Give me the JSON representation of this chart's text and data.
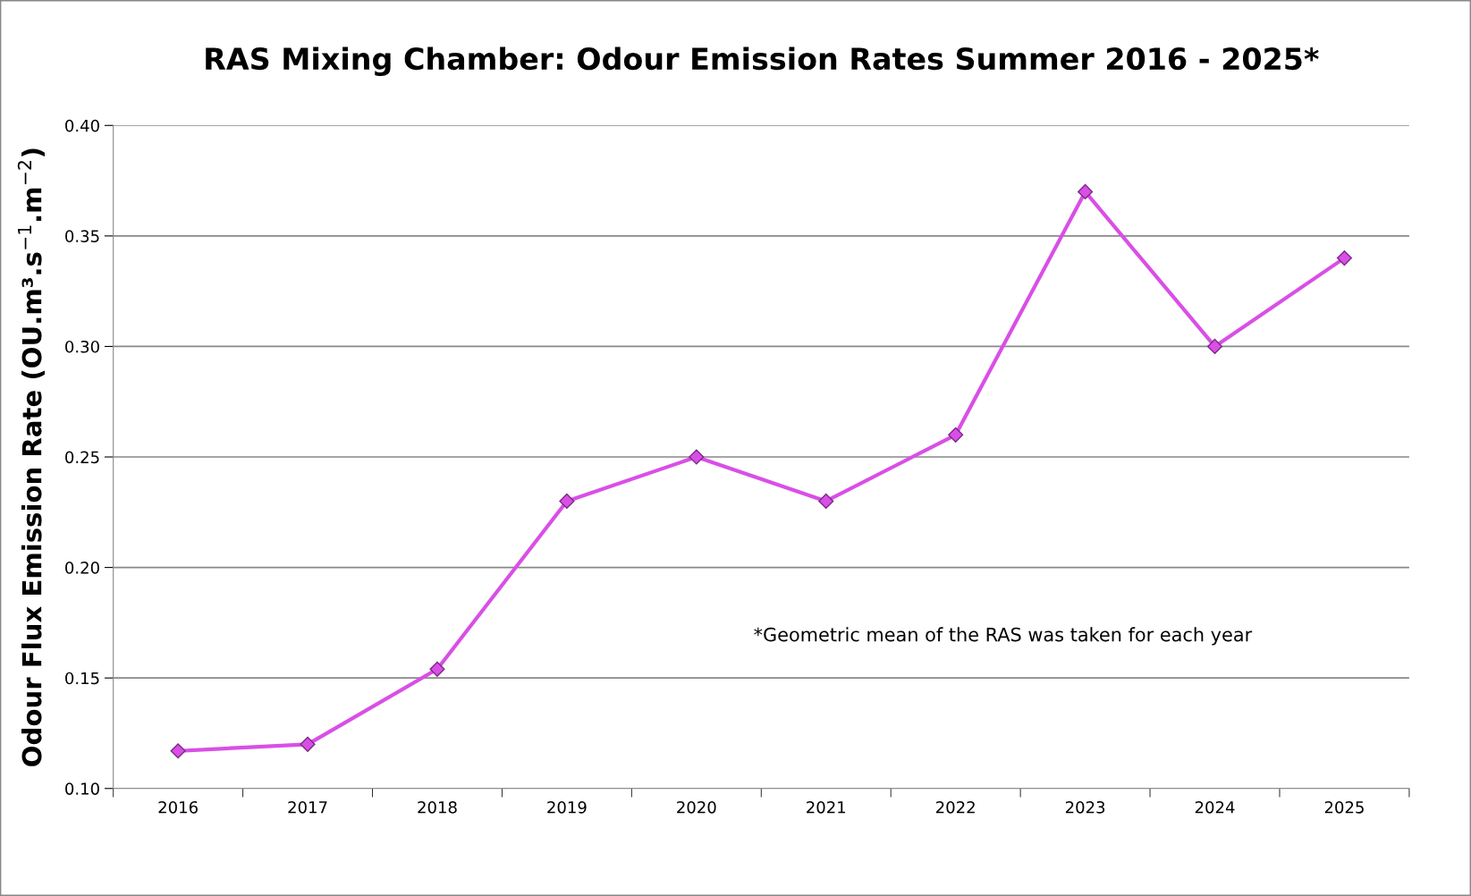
{
  "chart_data": {
    "type": "line",
    "title": "RAS Mixing Chamber: Odour Emission Rates Summer 2016 - 2025*",
    "ylabel": "Odour Flux Emission Rate (OU.m³.s$^{−1}$.m$^{−2}$)",
    "categories": [
      "2016",
      "2017",
      "2018",
      "2019",
      "2020",
      "2021",
      "2022",
      "2023",
      "2024",
      "2025"
    ],
    "series": [
      {
        "color": "#d94fe6",
        "values": [
          0.117,
          0.12,
          0.154,
          0.23,
          0.25,
          0.23,
          0.26,
          0.37,
          0.3,
          0.34
        ]
      }
    ],
    "ylim": [
      0.1,
      0.4
    ],
    "yticks": [
      {
        "value": 0.1,
        "label": "0.10"
      },
      {
        "value": 0.15,
        "label": "0.15"
      },
      {
        "value": 0.2,
        "label": "0.20"
      },
      {
        "value": 0.25,
        "label": "0.25"
      },
      {
        "value": 0.3,
        "label": "0.30"
      },
      {
        "value": 0.35,
        "label": "0.35"
      },
      {
        "value": 0.4,
        "label": "0.40"
      }
    ],
    "grid": "y",
    "marker": "diamond",
    "line_style": "solid",
    "annotations": [
      "*Geometric mean of the RAS was taken for each year"
    ]
  }
}
